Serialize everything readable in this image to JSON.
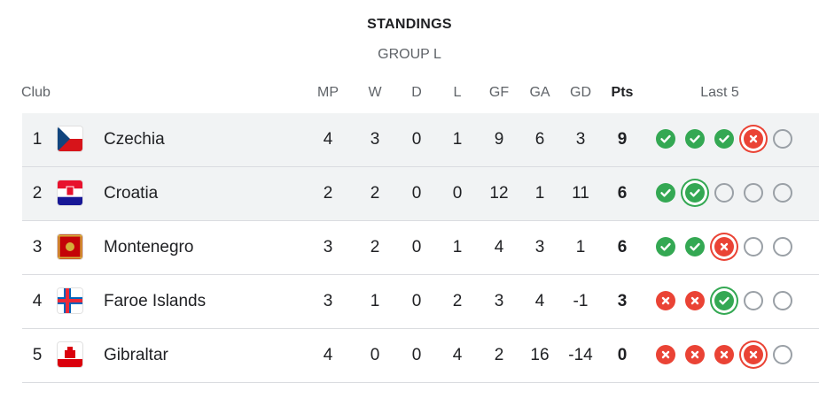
{
  "title": "STANDINGS",
  "group": "GROUP L",
  "headers": {
    "club": "Club",
    "mp": "MP",
    "w": "W",
    "d": "D",
    "l": "L",
    "gf": "GF",
    "ga": "GA",
    "gd": "GD",
    "pts": "Pts",
    "last5": "Last 5"
  },
  "colors": {
    "win": "#34a853",
    "loss": "#ea4335",
    "none": "#9aa0a6",
    "highlight": "#f1f3f4"
  },
  "rows": [
    {
      "rank": "1",
      "name": "Czechia",
      "flag": "czechia-flag",
      "mp": "4",
      "w": "3",
      "d": "0",
      "l": "1",
      "gf": "9",
      "ga": "6",
      "gd": "3",
      "pts": "9",
      "last5": [
        "W",
        "W",
        "W",
        "L",
        "N"
      ],
      "current": 3,
      "highlight": true
    },
    {
      "rank": "2",
      "name": "Croatia",
      "flag": "croatia-flag",
      "mp": "2",
      "w": "2",
      "d": "0",
      "l": "0",
      "gf": "12",
      "ga": "1",
      "gd": "11",
      "pts": "6",
      "last5": [
        "W",
        "W",
        "N",
        "N",
        "N"
      ],
      "current": 1,
      "highlight": true
    },
    {
      "rank": "3",
      "name": "Montenegro",
      "flag": "montenegro-flag",
      "mp": "3",
      "w": "2",
      "d": "0",
      "l": "1",
      "gf": "4",
      "ga": "3",
      "gd": "1",
      "pts": "6",
      "last5": [
        "W",
        "W",
        "L",
        "N",
        "N"
      ],
      "current": 2,
      "highlight": false
    },
    {
      "rank": "4",
      "name": "Faroe Islands",
      "flag": "faroe-islands-flag",
      "mp": "3",
      "w": "1",
      "d": "0",
      "l": "2",
      "gf": "3",
      "ga": "4",
      "gd": "-1",
      "pts": "3",
      "last5": [
        "L",
        "L",
        "W",
        "N",
        "N"
      ],
      "current": 2,
      "highlight": false
    },
    {
      "rank": "5",
      "name": "Gibraltar",
      "flag": "gibraltar-flag",
      "mp": "4",
      "w": "0",
      "d": "0",
      "l": "4",
      "gf": "2",
      "ga": "16",
      "gd": "-14",
      "pts": "0",
      "last5": [
        "L",
        "L",
        "L",
        "L",
        "N"
      ],
      "current": 3,
      "highlight": false
    }
  ]
}
